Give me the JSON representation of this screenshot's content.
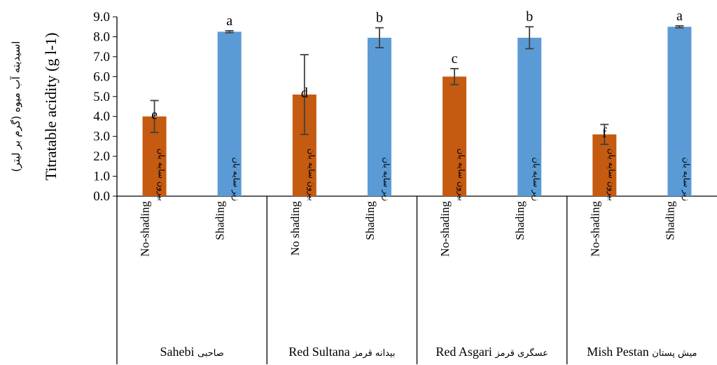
{
  "chart_data": {
    "type": "bar",
    "ylabel": "Titratable acidity (g l-1)",
    "ylabel_fa": "اسیدیته آب میوه (گرم بر لیتر)",
    "ylim": [
      0,
      9
    ],
    "yticks": [
      "0.0",
      "1.0",
      "2.0",
      "3.0",
      "4.0",
      "5.0",
      "6.0",
      "7.0",
      "8.0",
      "9.0"
    ],
    "grid": false,
    "colors": {
      "no_shading": "#C55A11",
      "shading": "#5B9BD5",
      "error": "#404040"
    },
    "groups": [
      {
        "name_en": "Sahebi",
        "name_fa": "صاحبی",
        "bars": [
          {
            "treatment_en": "No-shading",
            "treatment_fa": "بیرون سایه بان",
            "kind": "no_shading",
            "value": 4.0,
            "error": 0.8,
            "letter": "e"
          },
          {
            "treatment_en": "Shading",
            "treatment_fa": "زیر سایه بان",
            "kind": "shading",
            "value": 8.25,
            "error": 0.05,
            "letter": "a"
          }
        ]
      },
      {
        "name_en": "Red Sultana",
        "name_fa": "بیدانه قرمز",
        "bars": [
          {
            "treatment_en": "No shading",
            "treatment_fa": "بیرون سایه بان",
            "kind": "no_shading",
            "value": 5.1,
            "error": 2.0,
            "letter": "d"
          },
          {
            "treatment_en": "Shading",
            "treatment_fa": "زیر سایه بان",
            "kind": "shading",
            "value": 7.95,
            "error": 0.5,
            "letter": "b"
          }
        ]
      },
      {
        "name_en": "Red Asgari",
        "name_fa": "عسگری قرمز",
        "bars": [
          {
            "treatment_en": "No-shading",
            "treatment_fa": "بیرون سایه بان",
            "kind": "no_shading",
            "value": 6.0,
            "error": 0.4,
            "letter": "c"
          },
          {
            "treatment_en": "Shading",
            "treatment_fa": "زیر سایه بان",
            "kind": "shading",
            "value": 7.95,
            "error": 0.55,
            "letter": "b"
          }
        ]
      },
      {
        "name_en": "Mish Pestan",
        "name_fa": "میش پستان",
        "bars": [
          {
            "treatment_en": "No-shading",
            "treatment_fa": "بیرون سایه بان",
            "kind": "no_shading",
            "value": 3.1,
            "error": 0.5,
            "letter": "f"
          },
          {
            "treatment_en": "Shading",
            "treatment_fa": "زیر سایه بان",
            "kind": "shading",
            "value": 8.5,
            "error": 0.05,
            "letter": "a"
          }
        ]
      }
    ]
  }
}
